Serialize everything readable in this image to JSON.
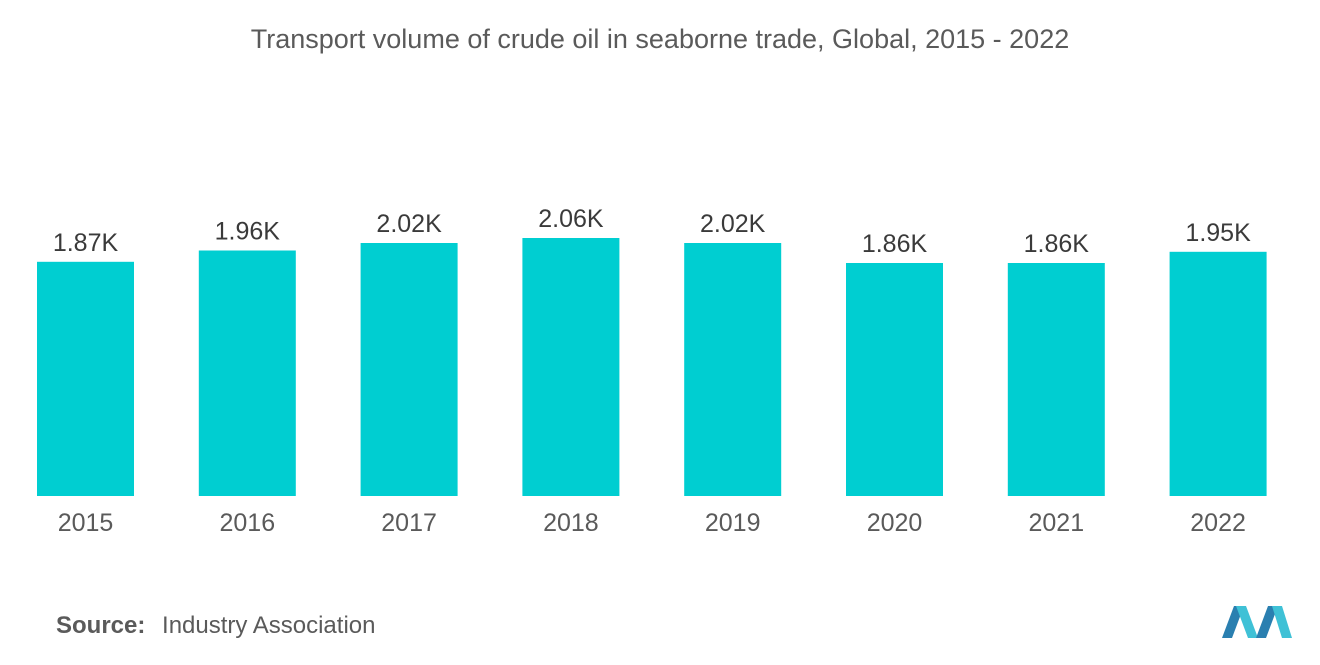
{
  "chart_data": {
    "type": "bar",
    "title": "Transport volume of crude oil in seaborne trade, Global, 2015 - 2022",
    "categories": [
      "2015",
      "2016",
      "2017",
      "2018",
      "2019",
      "2020",
      "2021",
      "2022"
    ],
    "values": [
      1870,
      1960,
      2020,
      2060,
      2020,
      1860,
      1860,
      1950
    ],
    "data_labels": [
      "1.87K",
      "1.96K",
      "2.02K",
      "2.06K",
      "2.02K",
      "1.86K",
      "1.86K",
      "1.95K"
    ],
    "xlabel": "",
    "ylabel": "",
    "ylim": [
      0,
      2060
    ],
    "grid": false,
    "bar_color": "#00CED1"
  },
  "footer": {
    "source_label": "Source:",
    "source_text": "Industry Association"
  },
  "colors": {
    "bar": "#00CED1",
    "text": "#5a5a5a",
    "logo_dark": "#2a7fb0",
    "logo_light": "#3fc1d6"
  },
  "logo_icon": "mordor-logo-icon"
}
